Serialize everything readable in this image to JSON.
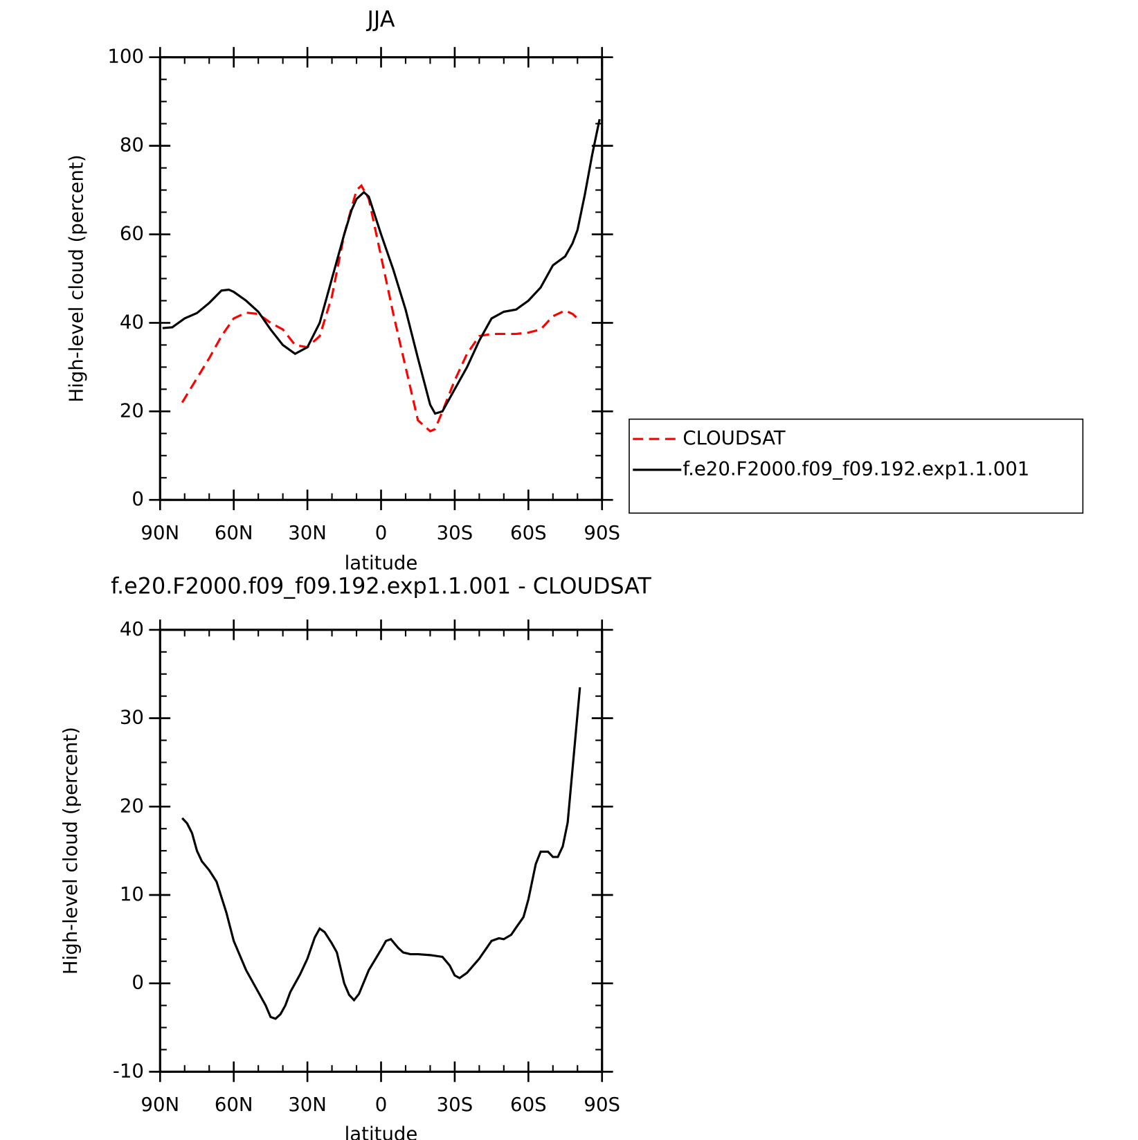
{
  "chart_data": [
    {
      "type": "line",
      "title": "JJA",
      "xlabel": "latitude",
      "ylabel": "High-level cloud (percent)",
      "xlim": [
        90,
        -90
      ],
      "xticks": [
        {
          "value": 90,
          "label": "90N"
        },
        {
          "value": 60,
          "label": "60N"
        },
        {
          "value": 30,
          "label": "30N"
        },
        0,
        {
          "value": -30,
          "label": "30S"
        },
        {
          "value": -60,
          "label": "60S"
        },
        {
          "value": -90,
          "label": "90S"
        }
      ],
      "ylim": [
        0,
        100
      ],
      "yticks": [
        0,
        20,
        40,
        60,
        80,
        100
      ],
      "legend": "right",
      "series": [
        {
          "name": "CLOUDSAT",
          "color": "#ff0000",
          "style": "dashed",
          "x": [
            81,
            75,
            70,
            65,
            60,
            55,
            50,
            45,
            40,
            35,
            30,
            25,
            20,
            15,
            10,
            8,
            5,
            0,
            -5,
            -10,
            -15,
            -20,
            -22,
            -25,
            -30,
            -35,
            -40,
            -45,
            -50,
            -55,
            -60,
            -65,
            -70,
            -75,
            -78,
            -81
          ],
          "values": [
            22,
            27.5,
            32,
            37,
            41,
            42.3,
            42,
            40,
            38.5,
            35,
            34.5,
            37,
            46,
            60,
            70,
            71,
            68,
            55,
            42,
            30,
            18,
            15.5,
            16,
            20,
            27,
            33,
            37,
            37.5,
            37.5,
            37.5,
            37.8,
            38.5,
            41.5,
            42.8,
            42,
            40.5
          ]
        },
        {
          "name": "f.e20.F2000.f09_f09.192.exp1.1.001",
          "color": "#000000",
          "style": "solid",
          "x": [
            89,
            85,
            80,
            75,
            70,
            65,
            62,
            60,
            55,
            50,
            45,
            40,
            35,
            30,
            25,
            20,
            15,
            12,
            10,
            7,
            5,
            0,
            -5,
            -10,
            -15,
            -20,
            -22,
            -25,
            -30,
            -35,
            -40,
            -45,
            -50,
            -55,
            -60,
            -65,
            -70,
            -75,
            -78,
            -80,
            -83,
            -86,
            -89
          ],
          "values": [
            38.8,
            39,
            41,
            42.2,
            44.5,
            47.3,
            47.5,
            47,
            45,
            42.5,
            38.5,
            35,
            33,
            34.5,
            40,
            50,
            60,
            65.5,
            68,
            69.5,
            68.5,
            60,
            52,
            43,
            32,
            21.5,
            19.5,
            20,
            25,
            30,
            36,
            41,
            42.5,
            43,
            45,
            48,
            53,
            55,
            58,
            61,
            69,
            78,
            86
          ]
        }
      ]
    },
    {
      "type": "line",
      "title": "f.e20.F2000.f09_f09.192.exp1.1.001 - CLOUDSAT",
      "xlabel": "latitude",
      "ylabel": "High-level cloud (percent)",
      "xlim": [
        90,
        -90
      ],
      "xticks": [
        {
          "value": 90,
          "label": "90N"
        },
        {
          "value": 60,
          "label": "60N"
        },
        {
          "value": 30,
          "label": "30N"
        },
        0,
        {
          "value": -30,
          "label": "30S"
        },
        {
          "value": -60,
          "label": "60S"
        },
        {
          "value": -90,
          "label": "90S"
        }
      ],
      "ylim": [
        -10,
        40
      ],
      "yticks": [
        -10,
        0,
        10,
        20,
        30,
        40
      ],
      "series": [
        {
          "color": "#000000",
          "style": "solid",
          "x": [
            81,
            79,
            77,
            75,
            73,
            70,
            67,
            63,
            60,
            55,
            50,
            47,
            45,
            43,
            41,
            39,
            37,
            35,
            33,
            30,
            27,
            25,
            23,
            20,
            18,
            15,
            13,
            11,
            9,
            5,
            0,
            -2,
            -4,
            -7,
            -9,
            -12,
            -15,
            -20,
            -25,
            -28,
            -30,
            -32,
            -35,
            -40,
            -45,
            -48,
            -50,
            -53,
            -55,
            -58,
            -60,
            -63,
            -65,
            -68,
            -70,
            -72,
            -74,
            -76,
            -81
          ],
          "values": [
            18.7,
            18.1,
            17,
            15,
            13.8,
            12.8,
            11.5,
            8,
            4.8,
            1.5,
            -1,
            -2.5,
            -3.8,
            -4,
            -3.5,
            -2.5,
            -1,
            0,
            1,
            2.8,
            5.2,
            6.2,
            5.8,
            4.5,
            3.5,
            0,
            -1.3,
            -1.9,
            -1.2,
            1.5,
            3.8,
            4.8,
            5,
            4,
            3.5,
            3.3,
            3.3,
            3.2,
            3,
            2,
            0.9,
            0.6,
            1.2,
            2.8,
            4.8,
            5.1,
            5,
            5.5,
            6.3,
            7.5,
            9.5,
            13.5,
            14.9,
            14.9,
            14.3,
            14.3,
            15.5,
            18.2,
            33.5
          ]
        }
      ]
    }
  ]
}
